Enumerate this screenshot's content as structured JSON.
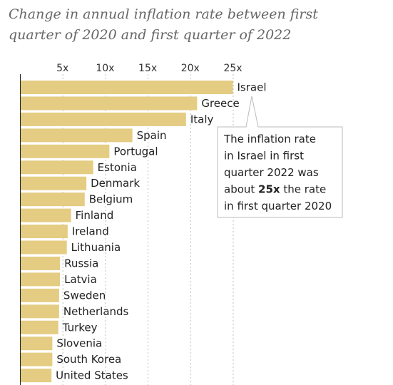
{
  "chart_data": {
    "type": "bar",
    "orientation": "horizontal",
    "title_lines": [
      "Change in annual inflation rate between first",
      "quarter of 2020 and first quarter of 2022"
    ],
    "x_ticks": [
      5,
      10,
      15,
      20,
      25
    ],
    "x_tick_labels": [
      "5x",
      "10x",
      "15x",
      "20x",
      "25x"
    ],
    "xlim": [
      0,
      26
    ],
    "grid": true,
    "bar_color": "#e4cc82",
    "categories": [
      "Israel",
      "Greece",
      "Italy",
      "Spain",
      "Portugal",
      "Estonia",
      "Denmark",
      "Belgium",
      "Finland",
      "Ireland",
      "Lithuania",
      "Russia",
      "Latvia",
      "Sweden",
      "Netherlands",
      "Turkey",
      "Slovenia",
      "South Korea",
      "United States"
    ],
    "values": [
      25.0,
      20.8,
      19.5,
      13.2,
      10.5,
      8.6,
      7.8,
      7.6,
      6.0,
      5.6,
      5.5,
      4.7,
      4.7,
      4.6,
      4.6,
      4.5,
      3.8,
      3.8,
      3.7
    ],
    "annotation": {
      "target": "Israel",
      "text_parts": [
        {
          "text": "The inflation rate",
          "bold": false
        },
        {
          "text": "in Israel in first",
          "bold": false
        },
        {
          "text": "quarter 2022 was",
          "bold": false
        },
        {
          "text": "about ",
          "bold": false
        },
        {
          "text": "25x",
          "bold": true
        },
        {
          "text": " the rate",
          "bold": false
        },
        {
          "text": "in first quarter 2020",
          "bold": false
        }
      ]
    }
  }
}
